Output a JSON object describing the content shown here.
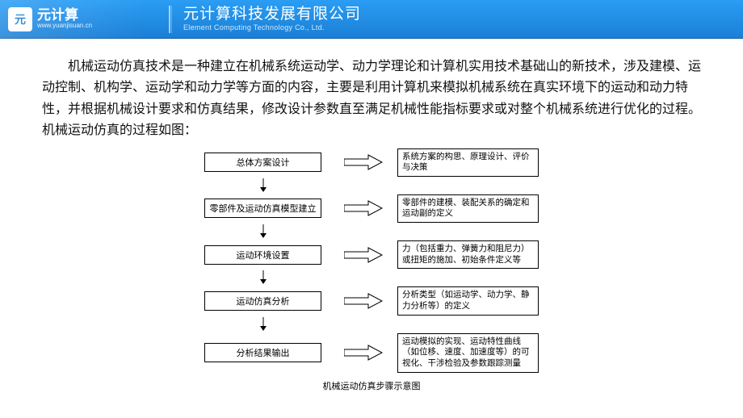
{
  "header": {
    "logo_cn": "元计算",
    "logo_url": "www.yuanjisuan.cn",
    "company_cn": "元计算科技发展有限公司",
    "company_en": "Element Computing Technology Co., Ltd.",
    "bg_gradient_top": "#2a9df4",
    "bg_gradient_bottom": "#1b7fd6"
  },
  "intro_text": "机械运动仿真技术是一种建立在机械系统运动学、动力学理论和计算机实用技术基础山的新技术，涉及建模、运动控制、机构学、运动学和动力学等方面的内容，主要是利用计算机来模拟机械系统在真实环境下的运动和动力特性，并根据机械设计要求和仿真结果，修改设计参数直至满足机械性能指标要求或对整个机械系统进行优化的过程。机械运动仿真的过程如图：",
  "flowchart": {
    "caption": "机械运动仿真步骤示意图",
    "steps": [
      {
        "title": "总体方案设计",
        "desc": "系统方案的构思、原理设计、评价与决策"
      },
      {
        "title": "零部件及运动仿真模型建立",
        "desc": "零部件的建模、装配关系的确定和运动副的定义"
      },
      {
        "title": "运动环境设置",
        "desc": "力（包括重力、弹簧力和阻尼力）或扭矩的施加、初始条件定义等"
      },
      {
        "title": "运动仿真分析",
        "desc": "分析类型（如运动学、动力学、静力分析等）的定义"
      },
      {
        "title": "分析结果输出",
        "desc": "运动模拟的实现、运动特性曲线（如位移、速度、加速度等）的可视化、干涉检验及参数跟踪测量"
      }
    ],
    "style": {
      "step_box_width": 145,
      "step_box_height": 24,
      "step_font": 11,
      "desc_box_width": 175,
      "desc_font": 10.5,
      "arrow_color": "#000000",
      "arrow_outline": "#000000",
      "arrow_fill": "#ffffff",
      "border_color": "#000000",
      "caption_font": 11
    }
  }
}
